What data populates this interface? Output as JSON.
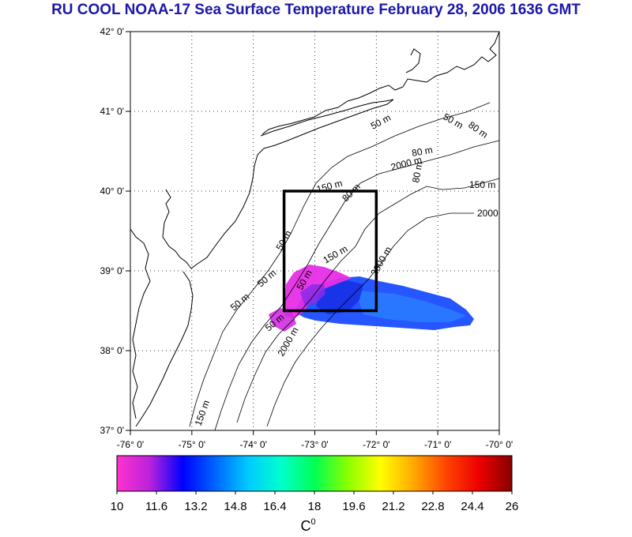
{
  "title": "RU COOL  NOAA-17 Sea Surface Temperature February 28, 2006 1636 GMT",
  "map": {
    "lat_labels": [
      "42° 0'",
      "41° 0'",
      "40° 0'",
      "39° 0'",
      "38° 0'",
      "37° 0'"
    ],
    "lon_labels": [
      "-76° 0'",
      "-75° 0'",
      "-74° 0'",
      "-73° 0'",
      "-72° 0'",
      "-71° 0'",
      "-70° 0'"
    ],
    "lat_range": [
      37,
      42
    ],
    "lon_range": [
      -76,
      -70
    ],
    "grid": "dotted",
    "contour_labels": [
      "50 m",
      "50 m",
      "80 m",
      "80 m",
      "150 m",
      "2000",
      "50 m",
      "50 m",
      "50 m",
      "80 m",
      "150 m",
      "2000 m",
      "50 m",
      "150 m",
      "2000 m",
      "80 m",
      "150 m",
      "50 m",
      "2000 m"
    ],
    "study_box": {
      "lon": [
        -73.5,
        -72.0
      ],
      "lat": [
        38.5,
        40.0
      ]
    }
  },
  "colorbar": {
    "ticks": [
      "10",
      "11.6",
      "13.2",
      "14.8",
      "16.4",
      "18",
      "19.6",
      "21.2",
      "22.8",
      "24.4",
      "26"
    ],
    "range": [
      10,
      26
    ],
    "unit": "C",
    "unit_sup": "0",
    "colors": [
      "#ff33cc",
      "#bb22dd",
      "#0000ff",
      "#0066ff",
      "#00ccff",
      "#00ffcc",
      "#00ff55",
      "#88ff00",
      "#ffff00",
      "#ffaa00",
      "#ff4400",
      "#ee0000",
      "#880000"
    ]
  }
}
